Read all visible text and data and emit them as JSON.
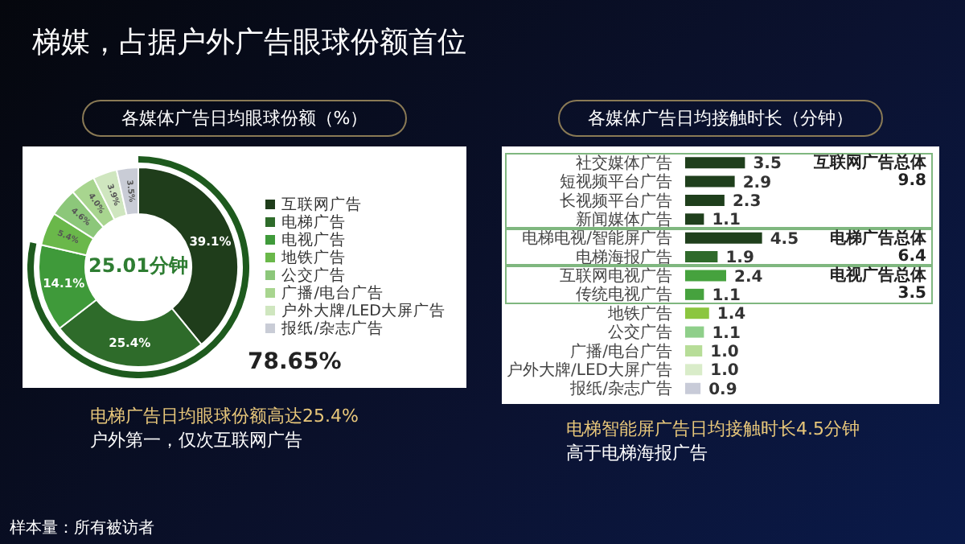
{
  "chart_data": [
    {
      "type": "donut",
      "title": "各媒体广告日均眼球份额（%）",
      "categories": [
        "互联网广告",
        "电梯广告",
        "电视广告",
        "地铁广告",
        "公交广告",
        "广播/电台广告",
        "户外大牌/LED大屏广告",
        "报纸/杂志广告"
      ],
      "values": [
        39.1,
        25.4,
        14.1,
        5.4,
        4.6,
        4.0,
        3.9,
        3.5
      ],
      "colors": [
        "#1f3d1b",
        "#2e6b2a",
        "#3f9a3a",
        "#6ab84a",
        "#8cc77a",
        "#a8d58f",
        "#cfe6bf",
        "#c9ccd6"
      ],
      "value_labels": [
        "39.1%",
        "25.4%",
        "14.1%",
        "5.4%",
        "4.6%",
        "4.0%",
        "3.9%",
        "3.5%"
      ],
      "legend": "right",
      "annotations": [
        "25.01分钟",
        "78.65%",
        "电梯广告日均眼球份额高达25.4%",
        "户外第一，仅次互联网广告",
        "梯媒，占据户外广告眼球份额首位",
        "样本量：所有被访者"
      ]
    },
    {
      "type": "bar",
      "orientation": "horizontal",
      "title": "各媒体广告日均接触时长（分钟）",
      "categories": [
        "社交媒体广告",
        "短视频平台广告",
        "长视频平台广告",
        "新闻媒体广告",
        "电梯电视/智能屏广告",
        "电梯海报广告",
        "互联网电视广告",
        "传统电视广告",
        "地铁广告",
        "公交广告",
        "广播/电台广告",
        "户外大牌/LED大屏广告",
        "报纸/杂志广告"
      ],
      "values": [
        3.5,
        2.9,
        2.3,
        1.1,
        4.5,
        1.9,
        2.4,
        1.1,
        1.4,
        1.1,
        1.0,
        1.0,
        0.9
      ],
      "colors": [
        "#1f3f1c",
        "#1f3f1c",
        "#1f3f1c",
        "#1f3f1c",
        "#1f3f1c",
        "#2f6a2b",
        "#46a23e",
        "#46a23e",
        "#8cc63f",
        "#8fcf8a",
        "#b7dd98",
        "#d9ecc9",
        "#c8cbd8"
      ],
      "value_labels": [
        "3.5",
        "2.9",
        "2.3",
        "1.1",
        "4.5",
        "1.9",
        "2.4",
        "1.1",
        "1.4",
        "1.1",
        "1.0",
        "1.0",
        "0.9"
      ],
      "annotations": [
        "互联网广告总体",
        "9.8",
        "电梯广告总体",
        "6.4",
        "电视广告总体",
        "3.5",
        "电梯智能屏广告日均接触时长4.5分钟",
        "高于电梯海报广告"
      ]
    }
  ]
}
